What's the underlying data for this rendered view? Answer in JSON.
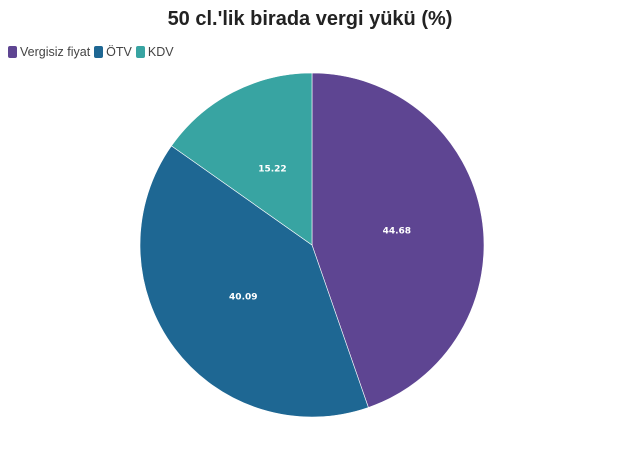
{
  "title": "50 cl.'lik birada vergi yükü (%)",
  "legend": [
    {
      "label": "Vergisiz fiyat",
      "color": "#5e4592"
    },
    {
      "label": "ÖTV",
      "color": "#1e6793"
    },
    {
      "label": "KDV",
      "color": "#38a4a2"
    }
  ],
  "chart_data": {
    "type": "pie",
    "title": "50 cl.'lik birada vergi yükü (%)",
    "categories": [
      "Vergisiz fiyat",
      "ÖTV",
      "KDV"
    ],
    "values": [
      44.68,
      40.09,
      15.22
    ],
    "colors": [
      "#5e4592",
      "#1e6793",
      "#38a4a2"
    ],
    "data_labels": [
      "44.68",
      "40.09",
      "15.22"
    ],
    "legend_position": "top-left",
    "start_angle": "12 o'clock, clockwise"
  }
}
